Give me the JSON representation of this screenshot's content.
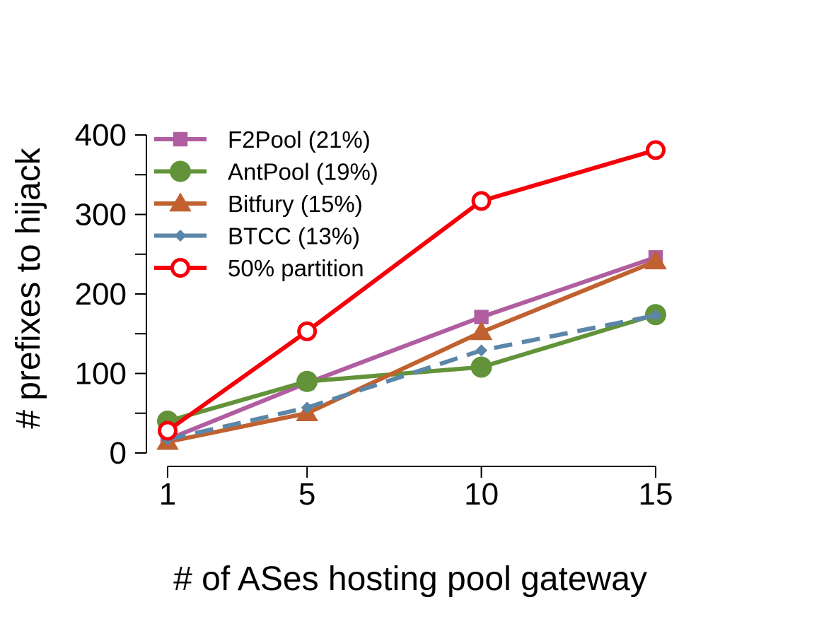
{
  "chart_data": {
    "type": "line",
    "title": "",
    "xlabel": "# of ASes hosting pool gateway",
    "ylabel": "# prefixes to hijack",
    "x": [
      1,
      5,
      10,
      15
    ],
    "x_tick_labels": [
      "1",
      "5",
      "10",
      "15"
    ],
    "xlim": [
      1,
      15
    ],
    "ylim": [
      0,
      400
    ],
    "y_ticks": [
      0,
      100,
      200,
      300,
      400
    ],
    "y_tick_labels": [
      "0",
      "100",
      "200",
      "300",
      "400"
    ],
    "y_minor_ticks": [
      50,
      150,
      250,
      350
    ],
    "grid": false,
    "legend_position": "top-left",
    "series": [
      {
        "name": "F2Pool (21%)",
        "values": [
          17,
          88,
          171,
          246
        ],
        "color": "#b05ea0",
        "marker": "square",
        "dash": "solid"
      },
      {
        "name": "AntPool (19%)",
        "values": [
          40,
          90,
          108,
          174
        ],
        "color": "#629339",
        "marker": "circle",
        "dash": "solid"
      },
      {
        "name": "Bitfury (15%)",
        "values": [
          14,
          50,
          152,
          241
        ],
        "color": "#c0612f",
        "marker": "triangle",
        "dash": "solid"
      },
      {
        "name": "BTCC (13%)",
        "values": [
          17,
          57,
          129,
          173
        ],
        "color": "#5b86a8",
        "marker": "diamond",
        "dash": "dashed"
      },
      {
        "name": "50% partition",
        "values": [
          28,
          153,
          317,
          381
        ],
        "color": "#f5000a",
        "marker": "open-circle",
        "dash": "solid"
      }
    ]
  }
}
